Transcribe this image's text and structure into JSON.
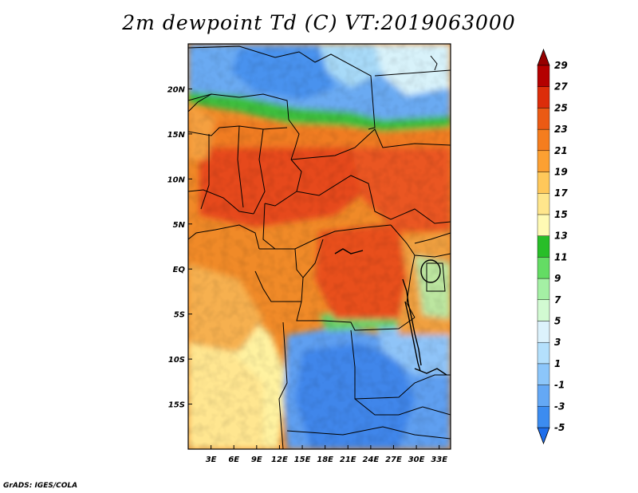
{
  "title": "2m dewpoint Td (C) VT:2019063000",
  "footer": "GrADS: IGES/COLA",
  "map": {
    "lon_range": [
      0,
      34.5
    ],
    "lat_range": [
      -20,
      25
    ],
    "lat_ticks": [
      {
        "value": 20,
        "label": "20N"
      },
      {
        "value": 15,
        "label": "15N"
      },
      {
        "value": 10,
        "label": "10N"
      },
      {
        "value": 5,
        "label": "5N"
      },
      {
        "value": 0,
        "label": "EQ"
      },
      {
        "value": -5,
        "label": "5S"
      },
      {
        "value": -10,
        "label": "10S"
      },
      {
        "value": -15,
        "label": "15S"
      }
    ],
    "lon_ticks": [
      {
        "value": 3,
        "label": "3E"
      },
      {
        "value": 6,
        "label": "6E"
      },
      {
        "value": 9,
        "label": "9E"
      },
      {
        "value": 12,
        "label": "12E"
      },
      {
        "value": 15,
        "label": "15E"
      },
      {
        "value": 18,
        "label": "18E"
      },
      {
        "value": 21,
        "label": "21E"
      },
      {
        "value": 24,
        "label": "24E"
      },
      {
        "value": 27,
        "label": "27E"
      },
      {
        "value": 30,
        "label": "30E"
      },
      {
        "value": 33,
        "label": "33E"
      }
    ]
  },
  "colorbar": {
    "levels": [
      "-5",
      "-3",
      "-1",
      "1",
      "3",
      "5",
      "7",
      "9",
      "11",
      "13",
      "15",
      "17",
      "19",
      "21",
      "23",
      "25",
      "27",
      "29"
    ],
    "colors": [
      "#1e6eeb",
      "#3c8cf0",
      "#64a8f5",
      "#8cc6fa",
      "#b4e0fc",
      "#dcf2fc",
      "#d2fad2",
      "#a4f0a4",
      "#64dc64",
      "#28be28",
      "#fffab4",
      "#ffe68c",
      "#ffc85a",
      "#fca032",
      "#f57d1e",
      "#eb5a14",
      "#dc2d0a",
      "#b40000",
      "#960000"
    ]
  }
}
